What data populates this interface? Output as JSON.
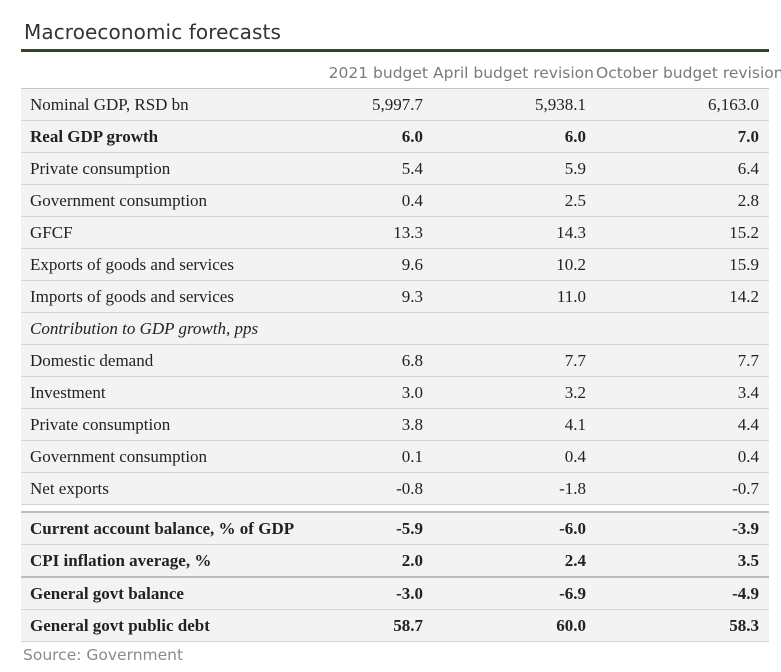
{
  "title": "Macroeconomic forecasts",
  "columns": [
    "",
    "2021 budget",
    "April budget revision",
    "October budget revision"
  ],
  "rows": [
    {
      "label": "Nominal GDP, RSD bn",
      "values": [
        "5,997.7",
        "5,938.1",
        "6,163.0"
      ],
      "style": "normal"
    },
    {
      "label": "Real GDP growth",
      "values": [
        "6.0",
        "6.0",
        "7.0"
      ],
      "style": "bold"
    },
    {
      "label": "Private consumption",
      "values": [
        "5.4",
        "5.9",
        "6.4"
      ],
      "style": "normal"
    },
    {
      "label": "Government consumption",
      "values": [
        "0.4",
        "2.5",
        "2.8"
      ],
      "style": "normal"
    },
    {
      "label": "GFCF",
      "values": [
        "13.3",
        "14.3",
        "15.2"
      ],
      "style": "normal"
    },
    {
      "label": "Exports of goods and services",
      "values": [
        "9.6",
        "10.2",
        "15.9"
      ],
      "style": "normal"
    },
    {
      "label": "Imports of goods and services",
      "values": [
        "9.3",
        "11.0",
        "14.2"
      ],
      "style": "normal"
    },
    {
      "label": "Contribution to GDP growth, pps",
      "values": [
        "",
        "",
        ""
      ],
      "style": "italic"
    },
    {
      "label": "Domestic demand",
      "values": [
        "6.8",
        "7.7",
        "7.7"
      ],
      "style": "normal"
    },
    {
      "label": "Investment",
      "values": [
        "3.0",
        "3.2",
        "3.4"
      ],
      "style": "normal"
    },
    {
      "label": "Private consumption",
      "values": [
        "3.8",
        "4.1",
        "4.4"
      ],
      "style": "normal"
    },
    {
      "label": "Government consumption",
      "values": [
        "0.1",
        "0.4",
        "0.4"
      ],
      "style": "normal"
    },
    {
      "label": "Net exports",
      "values": [
        "-0.8",
        "-1.8",
        "-0.7"
      ],
      "style": "normal"
    },
    {
      "label": "",
      "values": [
        "",
        "",
        ""
      ],
      "style": "gap"
    },
    {
      "label": "Current account balance, % of GDP",
      "values": [
        "-5.9",
        "-6.0",
        "-3.9"
      ],
      "style": "bold"
    },
    {
      "label": "CPI inflation average, %",
      "values": [
        "2.0",
        "2.4",
        "3.5"
      ],
      "style": "bold thick"
    },
    {
      "label": "General govt balance",
      "values": [
        "-3.0",
        "-6.9",
        "-4.9"
      ],
      "style": "bold"
    },
    {
      "label": "General govt public debt",
      "values": [
        "58.7",
        "60.0",
        "58.3"
      ],
      "style": "bold"
    }
  ],
  "source": "Source: Government"
}
